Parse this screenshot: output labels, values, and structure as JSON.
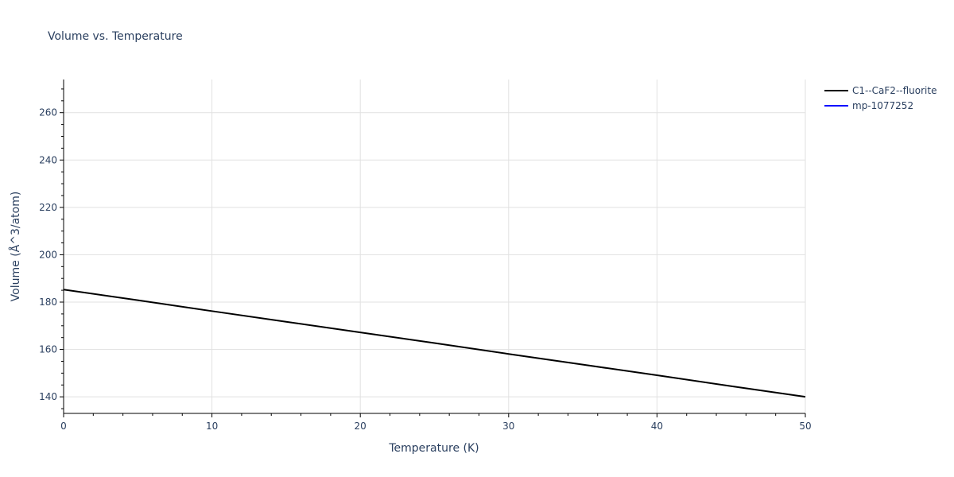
{
  "chart_data": {
    "type": "line",
    "title": "Volume vs. Temperature",
    "xlabel": "Temperature (K)",
    "ylabel": "Volume (Å^3/atom)",
    "xlim": [
      0,
      50
    ],
    "ylim": [
      133,
      274
    ],
    "x_ticks": [
      0,
      10,
      20,
      30,
      40,
      50
    ],
    "y_ticks": [
      140,
      160,
      180,
      200,
      220,
      240,
      260
    ],
    "grid": true,
    "legend_position": "top-right outside",
    "series": [
      {
        "name": "C1--CaF2--fluorite",
        "color": "#000000",
        "x": [
          0,
          5,
          10,
          15,
          20,
          25,
          30,
          35,
          40,
          45,
          50
        ],
        "y": [
          185.3,
          180.8,
          176.2,
          171.7,
          167.2,
          162.7,
          158.1,
          153.6,
          149.1,
          144.5,
          140.0
        ]
      },
      {
        "name": "mp-1077252",
        "color": "#0000ff",
        "x": [],
        "y": []
      }
    ]
  }
}
